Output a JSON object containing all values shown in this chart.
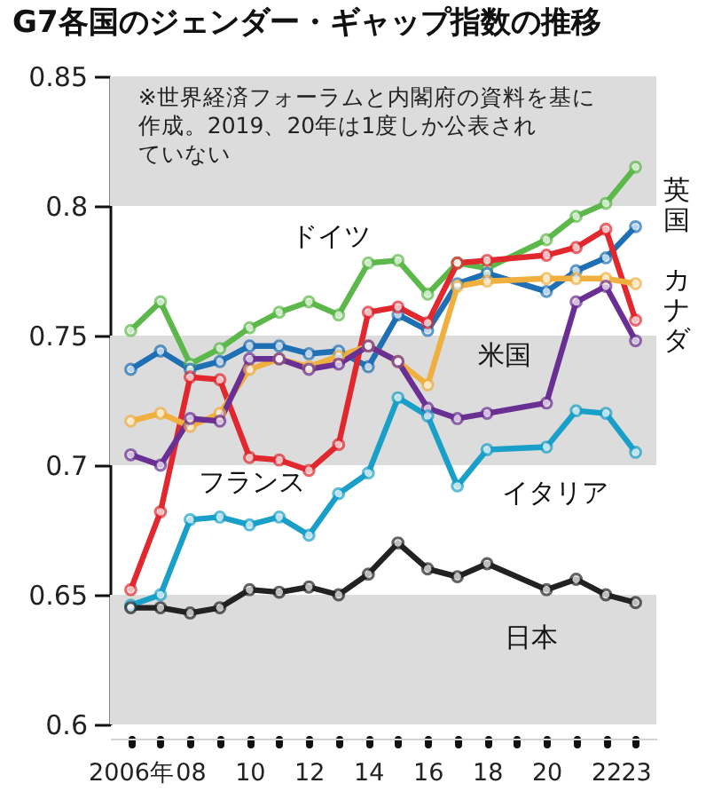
{
  "chart_data": {
    "type": "line",
    "title": "G7各国のジェンダー・ギャップ指数の推移",
    "annotations": [
      "※世界経済フォーラムと内閣府の資料を基に作成。2019、20年は1度しか公表されていない"
    ],
    "x": [
      2006,
      2007,
      2008,
      2009,
      2010,
      2011,
      2012,
      2013,
      2014,
      2015,
      2016,
      2017,
      2018,
      2020,
      2021,
      2022,
      2023
    ],
    "series": [
      {
        "name": "ドイツ",
        "color": "#5cb84a",
        "values": [
          0.752,
          0.763,
          0.739,
          0.745,
          0.753,
          0.759,
          0.763,
          0.758,
          0.778,
          0.779,
          0.766,
          0.778,
          0.776,
          0.787,
          0.796,
          0.801,
          0.815
        ]
      },
      {
        "name": "英国",
        "color": "#1f6fb5",
        "values": [
          0.737,
          0.744,
          0.737,
          0.74,
          0.746,
          0.746,
          0.743,
          0.744,
          0.738,
          0.758,
          0.752,
          0.77,
          0.774,
          0.767,
          0.775,
          0.78,
          0.792
        ]
      },
      {
        "name": "フランス",
        "color": "#e0282e",
        "values": [
          0.652,
          0.682,
          0.734,
          0.733,
          0.703,
          0.702,
          0.698,
          0.708,
          0.759,
          0.761,
          0.755,
          0.778,
          0.779,
          0.781,
          0.784,
          0.791,
          0.756
        ]
      },
      {
        "name": "カナダ",
        "color": "#f0b040",
        "values": [
          0.717,
          0.72,
          0.715,
          0.72,
          0.737,
          0.741,
          0.738,
          0.742,
          0.746,
          0.74,
          0.731,
          0.769,
          0.771,
          0.772,
          0.772,
          0.772,
          0.77
        ]
      },
      {
        "name": "米国",
        "color": "#6a2f93",
        "values": [
          0.704,
          0.7,
          0.718,
          0.717,
          0.741,
          0.741,
          0.737,
          0.739,
          0.746,
          0.74,
          0.722,
          0.718,
          0.72,
          0.724,
          0.763,
          0.769,
          0.748
        ]
      },
      {
        "name": "イタリア",
        "color": "#1aa0c8",
        "values": [
          0.646,
          0.65,
          0.679,
          0.68,
          0.677,
          0.68,
          0.673,
          0.689,
          0.697,
          0.726,
          0.719,
          0.692,
          0.706,
          0.707,
          0.721,
          0.72,
          0.705
        ]
      },
      {
        "name": "日本",
        "color": "#222222",
        "values": [
          0.645,
          0.645,
          0.643,
          0.645,
          0.652,
          0.651,
          0.653,
          0.65,
          0.658,
          0.67,
          0.66,
          0.657,
          0.662,
          0.652,
          0.656,
          0.65,
          0.647
        ]
      }
    ],
    "xlim": [
      2005.3,
      2023.7
    ],
    "xticks": [
      {
        "value": 2006,
        "label": "2006年"
      },
      {
        "value": 2007,
        "label": null
      },
      {
        "value": 2008,
        "label": "08"
      },
      {
        "value": 2009,
        "label": null
      },
      {
        "value": 2010,
        "label": "10"
      },
      {
        "value": 2011,
        "label": null
      },
      {
        "value": 2012,
        "label": "12"
      },
      {
        "value": 2013,
        "label": null
      },
      {
        "value": 2014,
        "label": "14"
      },
      {
        "value": 2015,
        "label": null
      },
      {
        "value": 2016,
        "label": "16"
      },
      {
        "value": 2017,
        "label": null
      },
      {
        "value": 2018,
        "label": "18"
      },
      {
        "value": 2019,
        "label": null
      },
      {
        "value": 2020,
        "label": "20"
      },
      {
        "value": 2021,
        "label": null
      },
      {
        "value": 2022,
        "label": "22"
      },
      {
        "value": 2023,
        "label": "23"
      }
    ],
    "ylim": [
      0.6,
      0.85
    ],
    "yticks": [
      0.6,
      0.65,
      0.7,
      0.75,
      0.8,
      0.85
    ],
    "bands": [
      {
        "axis": "y",
        "from": 0.6,
        "to": 0.65,
        "color": "#dcdcdc"
      },
      {
        "axis": "y",
        "from": 0.7,
        "to": 0.75,
        "color": "#dcdcdc"
      },
      {
        "axis": "y",
        "from": 0.8,
        "to": 0.85,
        "color": "#dcdcdc"
      }
    ],
    "grid": false,
    "legend": false,
    "marker": "circle",
    "line_style": "solid"
  }
}
